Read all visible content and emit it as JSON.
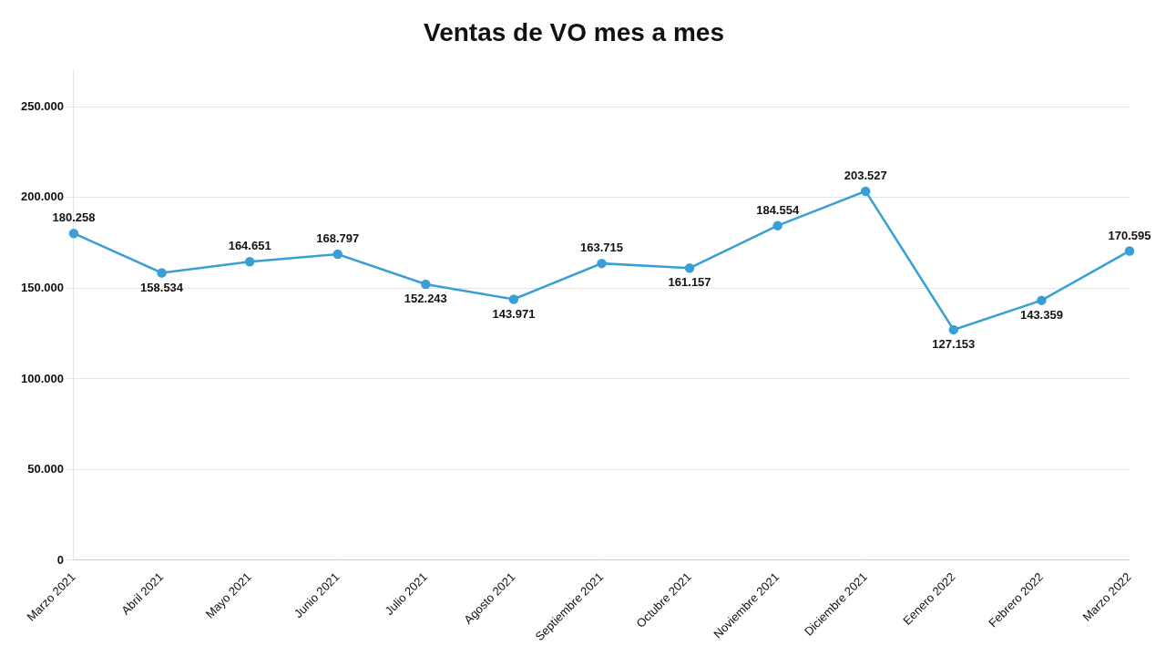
{
  "chart_data": {
    "type": "line",
    "title": "Ventas de VO mes a mes",
    "categories": [
      "Marzo 2021",
      "Abril 2021",
      "Mayo 2021",
      "Junio 2021",
      "Julio 2021",
      "Agosto 2021",
      "Septiembre 2021",
      "Octubre 2021",
      "Noviembre 2021",
      "Diciembre 2021",
      "Eenero 2022",
      "Febrero 2022",
      "Marzo 2022"
    ],
    "values": [
      180258,
      158534,
      164651,
      168797,
      152243,
      143971,
      163715,
      161157,
      184554,
      203527,
      127153,
      143359,
      170595
    ],
    "value_labels": [
      "180.258",
      "158.534",
      "164.651",
      "168.797",
      "152.243",
      "143.971",
      "163.715",
      "161.157",
      "184.554",
      "203.527",
      "127.153",
      "143.359",
      "170.595"
    ],
    "color": "#3a9fd5",
    "marker": "circle",
    "ylim": [
      0,
      270000
    ],
    "yticks": [
      {
        "value": 0,
        "label": "0"
      },
      {
        "value": 50000,
        "label": "50.000"
      },
      {
        "value": 100000,
        "label": "100.000"
      },
      {
        "value": 150000,
        "label": "150.000"
      },
      {
        "value": 200000,
        "label": "200.000"
      },
      {
        "value": 250000,
        "label": "250.000"
      }
    ],
    "grid": true,
    "data_labels": true
  }
}
